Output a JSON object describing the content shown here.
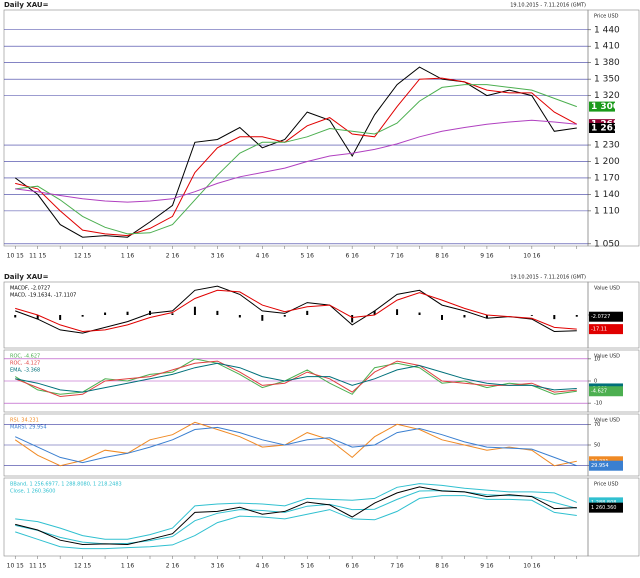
{
  "chart_data": [
    {
      "type": "line",
      "title": "Daily XAU=",
      "subtitle": "19.10.2015 - 7.11.2016 (GMT)",
      "axis_title": "Price USD",
      "categories": [
        "10 15",
        "11 15",
        null,
        "12 15",
        null,
        "1 16",
        null,
        "2 16",
        null,
        "3 16",
        null,
        "4 16",
        null,
        "5 16",
        null,
        "6 16",
        null,
        "7 16",
        null,
        "8 16",
        null,
        "9 16",
        null,
        "10 16",
        null,
        null
      ],
      "ylim": [
        1046,
        1476
      ],
      "yticks": [
        {
          "value": 1440,
          "label": "1 440"
        },
        {
          "value": 1410,
          "label": "1 410"
        },
        {
          "value": 1380,
          "label": "1 380"
        },
        {
          "value": 1350,
          "label": "1 350"
        },
        {
          "value": 1320,
          "label": "1 320"
        },
        {
          "value": 1230,
          "label": "1 230"
        },
        {
          "value": 1200,
          "label": "1 200"
        },
        {
          "value": 1170,
          "label": "1 170"
        },
        {
          "value": 1140,
          "label": "1 140"
        },
        {
          "value": 1110,
          "label": "1 110"
        },
        {
          "value": 1050,
          "label": "1 050"
        }
      ],
      "grid": true,
      "grid_color": "#3a3aa0",
      "series": [
        {
          "color": "#000000",
          "values": [
            1170,
            1140,
            1085,
            1062,
            1065,
            1062,
            1090,
            1120,
            1235,
            1240,
            1262,
            1225,
            1240,
            1290,
            1275,
            1210,
            1285,
            1340,
            1372,
            1350,
            1345,
            1320,
            1330,
            1320,
            1255,
            1261
          ]
        },
        {
          "color": "#e00000",
          "values": [
            1160,
            1150,
            1110,
            1075,
            1068,
            1065,
            1078,
            1100,
            1180,
            1225,
            1245,
            1245,
            1235,
            1265,
            1280,
            1250,
            1245,
            1300,
            1350,
            1352,
            1345,
            1330,
            1325,
            1325,
            1290,
            1268
          ]
        },
        {
          "color": "#4caf50",
          "values": [
            1150,
            1155,
            1130,
            1100,
            1080,
            1068,
            1070,
            1085,
            1130,
            1175,
            1215,
            1235,
            1235,
            1245,
            1260,
            1255,
            1250,
            1270,
            1310,
            1335,
            1340,
            1340,
            1335,
            1330,
            1315,
            1300
          ]
        },
        {
          "color": "#b040c0",
          "values": [
            1150,
            1145,
            1138,
            1132,
            1128,
            1126,
            1128,
            1132,
            1145,
            1160,
            1172,
            1180,
            1188,
            1200,
            1210,
            1215,
            1222,
            1232,
            1245,
            1255,
            1262,
            1268,
            1272,
            1275,
            1272,
            1268
          ]
        }
      ],
      "end_labels": [
        {
          "value": 1300,
          "label": "1 300",
          "color": "#1a9a1a"
        },
        {
          "value": 1268,
          "label": "1 268",
          "color": "#8a0030"
        },
        {
          "value": 1261,
          "label": "1 261",
          "color": "#000000"
        }
      ]
    },
    {
      "type": "line",
      "title": "Daily XAU=",
      "subtitle": "19.10.2015 - 7.11.2016 (GMT)",
      "axis_title": "Value USD",
      "legend": [
        "MACDF, -2.0727",
        "MACD, -19.1634, -17.1107"
      ],
      "ylim": [
        -40,
        40
      ],
      "yticks": [
        0
      ],
      "grid": false,
      "series": [
        {
          "style": "bars",
          "color": "#000000",
          "values": [
            -3,
            -5,
            -6,
            -2,
            3,
            4,
            5,
            2,
            10,
            5,
            -3,
            -7,
            -2,
            5,
            0,
            -9,
            5,
            7,
            3,
            -6,
            -3,
            -4,
            0,
            -1,
            -5,
            -2.0727
          ]
        },
        {
          "color": "#000000",
          "values": [
            5,
            -5,
            -18,
            -22,
            -15,
            -8,
            2,
            5,
            30,
            35,
            25,
            5,
            2,
            15,
            12,
            -12,
            5,
            25,
            30,
            12,
            5,
            -4,
            -2,
            -5,
            -20,
            -19.1634
          ]
        },
        {
          "color": "#e00000",
          "values": [
            8,
            0,
            -12,
            -20,
            -18,
            -12,
            -3,
            3,
            20,
            30,
            28,
            12,
            4,
            10,
            12,
            -3,
            0,
            18,
            27,
            18,
            8,
            0,
            -2,
            -4,
            -15,
            -17.1107
          ]
        }
      ],
      "end_labels": [
        {
          "value": -2.0727,
          "label": "-2.0727",
          "color": "#000000"
        },
        {
          "value": -17.1107,
          "label": "-17.11",
          "color": "#e00000"
        }
      ]
    },
    {
      "type": "line",
      "axis_title": "Value USD",
      "legend": [
        "ROC, -4.627",
        "ROC, -4.127",
        "EMA, -3.368"
      ],
      "ylim": [
        -14,
        14
      ],
      "yticks": [
        10,
        0,
        -10
      ],
      "grid": true,
      "grid_color": "#b040c0",
      "series": [
        {
          "color": "#4caf50",
          "values": [
            2,
            -4,
            -6,
            -5,
            1,
            0,
            3,
            4,
            10,
            8,
            3,
            -3,
            0,
            5,
            -1,
            -6,
            6,
            8,
            6,
            -1,
            0,
            -3,
            -1,
            -2,
            -6,
            -4.627
          ]
        },
        {
          "color": "#e04040",
          "values": [
            1,
            -3,
            -7,
            -6,
            0,
            1,
            2,
            5,
            8,
            9,
            4,
            -2,
            -1,
            4,
            1,
            -5,
            4,
            9,
            7,
            0,
            -1,
            -2,
            -2,
            -1,
            -5,
            -4.127
          ]
        },
        {
          "color": "#00707a",
          "values": [
            1,
            -1,
            -4,
            -5,
            -3,
            -1,
            1,
            3,
            6,
            8,
            6,
            2,
            0,
            2,
            2,
            -2,
            1,
            5,
            7,
            4,
            1,
            -1,
            -2,
            -2,
            -4,
            -3.368
          ]
        }
      ],
      "end_labels": [
        {
          "value": -3.368,
          "label": "-3.368",
          "color": "#00707a"
        },
        {
          "value": -4.627,
          "label": "-4.627",
          "color": "#4caf50"
        }
      ]
    },
    {
      "type": "line",
      "axis_title": "Value USD",
      "legend": [
        "RSI, 34.231",
        "MARSI, 29.954"
      ],
      "ylim": [
        20,
        80
      ],
      "yticks": [
        70,
        50,
        30
      ],
      "grid": true,
      "grid_color": "#3a3aa0",
      "series": [
        {
          "color": "#f08a24",
          "values": [
            55,
            40,
            30,
            35,
            45,
            42,
            55,
            60,
            72,
            65,
            58,
            48,
            50,
            62,
            55,
            38,
            58,
            70,
            65,
            55,
            50,
            45,
            48,
            45,
            30,
            34.231
          ]
        },
        {
          "color": "#3a7fd0",
          "values": [
            58,
            48,
            38,
            33,
            38,
            42,
            48,
            55,
            65,
            67,
            62,
            55,
            50,
            55,
            57,
            48,
            50,
            62,
            66,
            60,
            53,
            48,
            47,
            46,
            38,
            29.954
          ]
        }
      ],
      "end_labels": [
        {
          "value": 34.231,
          "label": "34.231",
          "color": "#f08a24"
        },
        {
          "value": 29.954,
          "label": "29.954",
          "color": "#3a7fd0"
        }
      ]
    },
    {
      "type": "line",
      "axis_title": "Price USD",
      "legend": [
        "BBand, 1 256.6977, 1 288.8080, 1 218.2483",
        "Close, 1 260.3600"
      ],
      "categories": [
        "10 15",
        "11 15",
        null,
        "12 15",
        null,
        "1 16",
        null,
        "2 16",
        null,
        "3 16",
        null,
        "4 16",
        null,
        "5 16",
        null,
        "6 16",
        null,
        "7 16",
        null,
        "8 16",
        null,
        "9 16",
        null,
        "10 16",
        null,
        null
      ],
      "ylim": [
        1000,
        1420
      ],
      "grid": false,
      "series": [
        {
          "color": "#30c0d0",
          "values": [
            1165,
            1138,
            1100,
            1075,
            1065,
            1068,
            1083,
            1105,
            1190,
            1230,
            1250,
            1245,
            1235,
            1268,
            1278,
            1250,
            1252,
            1305,
            1350,
            1352,
            1345,
            1330,
            1325,
            1322,
            1288,
            1256.6977
          ]
        },
        {
          "color": "#30c0d0",
          "values": [
            1200,
            1185,
            1150,
            1110,
            1090,
            1090,
            1115,
            1150,
            1270,
            1280,
            1285,
            1280,
            1270,
            1310,
            1305,
            1300,
            1310,
            1370,
            1390,
            1380,
            1365,
            1355,
            1345,
            1345,
            1340,
            1288.808
          ]
        },
        {
          "color": "#30c0d0",
          "values": [
            1130,
            1090,
            1050,
            1040,
            1040,
            1045,
            1050,
            1060,
            1110,
            1180,
            1215,
            1210,
            1200,
            1225,
            1250,
            1200,
            1195,
            1240,
            1310,
            1325,
            1325,
            1305,
            1305,
            1300,
            1235,
            1218.2483
          ]
        },
        {
          "color": "#000000",
          "values": [
            1170,
            1140,
            1085,
            1062,
            1065,
            1062,
            1090,
            1120,
            1235,
            1240,
            1262,
            1225,
            1240,
            1290,
            1275,
            1210,
            1285,
            1340,
            1372,
            1350,
            1345,
            1320,
            1330,
            1320,
            1255,
            1260.36
          ]
        }
      ],
      "end_labels": [
        {
          "value": 1288.808,
          "label": "1 288.808",
          "color": "#30c0d0"
        },
        {
          "value": 1260.36,
          "label": "1 260.360",
          "color": "#000000"
        }
      ]
    }
  ]
}
